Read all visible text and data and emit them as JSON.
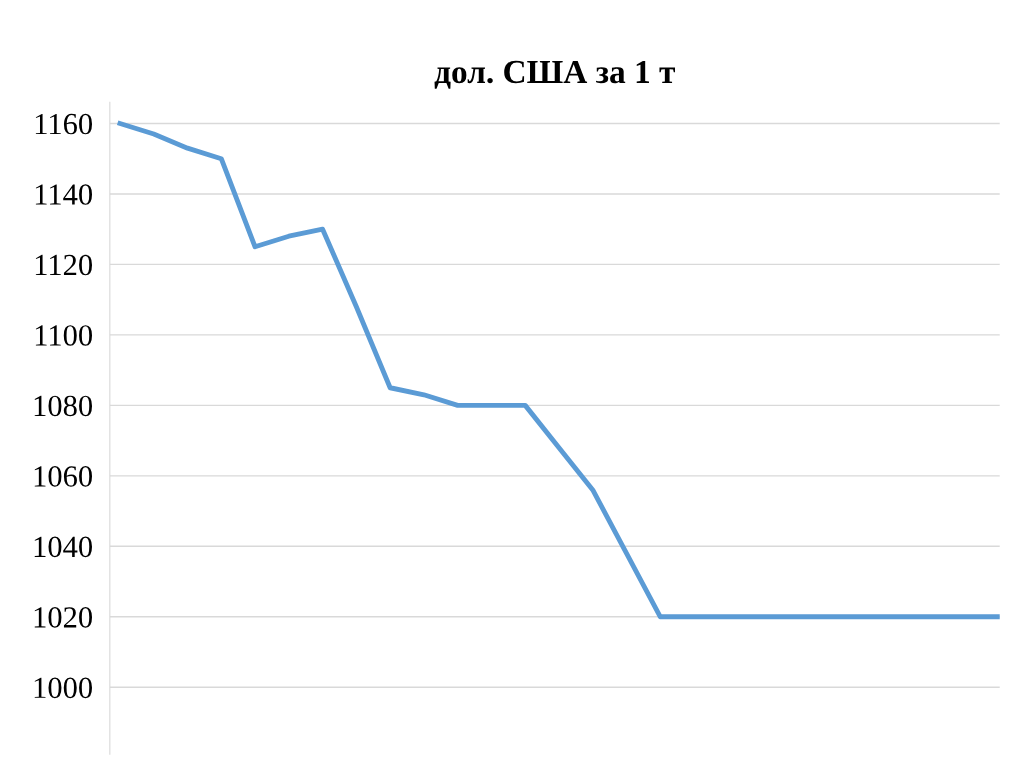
{
  "chart_data": {
    "type": "line",
    "title": "дол. США за 1 т",
    "categories": [
      null,
      null,
      null,
      null,
      null,
      null,
      null,
      null,
      null,
      null,
      null,
      null,
      null,
      null,
      null,
      null,
      null,
      null,
      null,
      null,
      null,
      null,
      null,
      null,
      null,
      null,
      null
    ],
    "series": [
      {
        "color": "#5b9bd5",
        "values": [
          1160,
          1157,
          1153,
          1150,
          1125,
          1128,
          1130,
          1108,
          1085,
          1083,
          1080,
          1080,
          1080,
          1068,
          1056,
          1038,
          1020,
          1020,
          1020,
          1020,
          1020,
          1020,
          1020,
          1020,
          1020,
          1020,
          1020
        ]
      }
    ],
    "ylim": [
      981,
      1166
    ],
    "yticks": [
      1000,
      1020,
      1040,
      1060,
      1080,
      1100,
      1120,
      1140,
      1160
    ],
    "grid": "y",
    "marker": "none",
    "line_style": "solid"
  }
}
